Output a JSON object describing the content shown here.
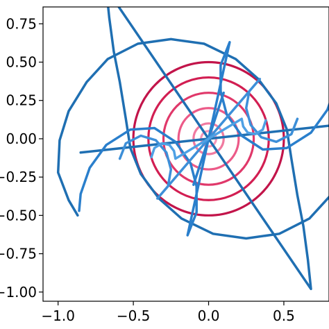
{
  "chart_data": {
    "type": "line",
    "title": "",
    "xlabel": "",
    "ylabel": "",
    "xlim": [
      -1.1,
      0.8
    ],
    "ylim": [
      -1.06,
      0.86
    ],
    "grid": false,
    "legend": "none",
    "x_ticks": [
      -1.0,
      -0.5,
      0.0,
      0.5
    ],
    "x_tick_labels": [
      "−1.0",
      "−0.5",
      "0.0",
      "0.5"
    ],
    "y_ticks": [
      0.75,
      0.5,
      0.25,
      0.0,
      -0.25,
      -0.5,
      -0.75,
      -1.0
    ],
    "y_tick_labels": [
      "0.75",
      "0.50",
      "0.25",
      "0.00",
      "−0.25",
      "−0.50",
      "−0.75",
      "−1.00"
    ],
    "circles": {
      "center": [
        0.0,
        0.0
      ],
      "radii": [
        0.5,
        0.4,
        0.3,
        0.2,
        0.1,
        0.05
      ],
      "colors": [
        "#c2144a",
        "#d21e52",
        "#e0386a",
        "#ec5a88",
        "#f07aa0",
        "#f497b8"
      ]
    },
    "spirals": [
      {
        "color": "#1f6fb2",
        "points": [
          [
            -0.87,
            -0.5
          ],
          [
            -0.93,
            -0.4
          ],
          [
            -1.0,
            -0.22
          ],
          [
            -0.99,
            -0.01
          ],
          [
            -0.93,
            0.18
          ],
          [
            -0.81,
            0.37
          ],
          [
            -0.67,
            0.52
          ],
          [
            -0.47,
            0.62
          ],
          [
            -0.25,
            0.65
          ],
          [
            -0.03,
            0.62
          ],
          [
            0.18,
            0.52
          ],
          [
            0.33,
            0.39
          ],
          [
            0.45,
            0.23
          ],
          [
            0.52,
            0.06
          ],
          [
            0.55,
            -0.13
          ],
          [
            0.59,
            -0.37
          ],
          [
            0.63,
            -0.57
          ],
          [
            0.66,
            -0.79
          ],
          [
            0.68,
            -0.98
          ],
          [
            0.0,
            0.0
          ],
          [
            0.85,
            0.09
          ]
        ]
      },
      {
        "color": "#2a7fcc",
        "points": [
          [
            -0.86,
            -0.47
          ],
          [
            -0.85,
            -0.36
          ],
          [
            -0.79,
            -0.19
          ],
          [
            -0.68,
            -0.04
          ],
          [
            -0.52,
            0.06
          ],
          [
            -0.36,
            0.07
          ],
          [
            -0.22,
            -0.02
          ],
          [
            -0.12,
            -0.16
          ],
          [
            -0.08,
            -0.31
          ],
          [
            -0.08,
            -0.48
          ],
          [
            -0.14,
            -0.63
          ],
          [
            0.0,
            0.0
          ],
          [
            0.1,
            0.3
          ],
          [
            0.0,
            0.0
          ]
        ]
      },
      {
        "color": "#3d8fd8",
        "points": [
          [
            -0.59,
            -0.13
          ],
          [
            -0.55,
            -0.03
          ],
          [
            -0.45,
            0.02
          ],
          [
            -0.35,
            -0.01
          ],
          [
            -0.28,
            -0.09
          ],
          [
            -0.25,
            -0.2
          ],
          [
            -0.27,
            -0.31
          ],
          [
            -0.34,
            -0.39
          ],
          [
            0.0,
            0.0
          ]
        ]
      },
      {
        "color": "#4ea0e4",
        "points": [
          [
            -0.38,
            -0.12
          ],
          [
            -0.36,
            -0.06
          ],
          [
            -0.31,
            -0.03
          ],
          [
            -0.26,
            -0.04
          ],
          [
            -0.23,
            -0.08
          ],
          [
            -0.22,
            -0.13
          ],
          [
            0.0,
            0.0
          ]
        ]
      }
    ]
  }
}
